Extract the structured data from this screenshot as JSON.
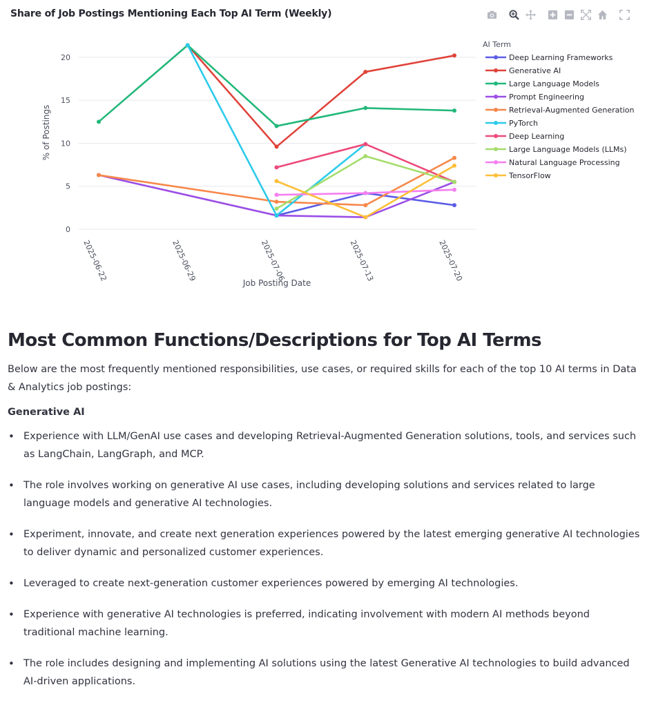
{
  "chart": {
    "title": "Share of Job Postings Mentioning Each Top AI Term (Weekly)",
    "modebar_icons": [
      "camera-icon",
      "zoom-icon",
      "pan-icon",
      "zoom-in-icon",
      "zoom-out-icon",
      "autoscale-icon",
      "reset-axes-icon",
      "fullscreen-icon"
    ]
  },
  "chart_data": {
    "type": "line",
    "title": "Share of Job Postings Mentioning Each Top AI Term (Weekly)",
    "xlabel": "Job Posting Date",
    "ylabel": "% of Postings",
    "categories": [
      "2025-06-22",
      "2025-06-29",
      "2025-07-06",
      "2025-07-13",
      "2025-07-20"
    ],
    "ylim": [
      0,
      22
    ],
    "yticks": [
      0,
      5,
      10,
      15,
      20
    ],
    "grid": true,
    "legend_title": "AI Term",
    "legend_position": "right",
    "series": [
      {
        "name": "Deep Learning Frameworks",
        "color": "#5b5de6",
        "values": [
          null,
          null,
          1.6,
          4.2,
          2.8
        ]
      },
      {
        "name": "Generative AI",
        "color": "#e0433a",
        "values": [
          null,
          21.4,
          9.6,
          18.3,
          20.2
        ]
      },
      {
        "name": "Large Language Models",
        "color": "#22b87a",
        "values": [
          12.5,
          21.4,
          12.0,
          14.1,
          13.8
        ]
      },
      {
        "name": "Prompt Engineering",
        "color": "#9b4ee6",
        "values": [
          6.3,
          null,
          1.6,
          1.4,
          5.5
        ]
      },
      {
        "name": "Retrieval-Augmented Generation",
        "color": "#f7884a",
        "values": [
          6.3,
          null,
          3.2,
          2.8,
          8.3
        ]
      },
      {
        "name": "PyTorch",
        "color": "#2ccbea",
        "values": [
          null,
          21.4,
          1.6,
          9.9,
          null
        ]
      },
      {
        "name": "Deep Learning",
        "color": "#ec4a7a",
        "values": [
          null,
          null,
          7.2,
          9.9,
          5.5
        ]
      },
      {
        "name": "Large Language Models (LLMs)",
        "color": "#a5dd6c",
        "values": [
          null,
          null,
          2.4,
          8.5,
          5.5
        ]
      },
      {
        "name": "Natural Language Processing",
        "color": "#f57ff0",
        "values": [
          null,
          null,
          4.0,
          4.2,
          4.6
        ]
      },
      {
        "name": "TensorFlow",
        "color": "#fdbf3a",
        "values": [
          null,
          null,
          5.6,
          1.4,
          7.4
        ]
      }
    ]
  },
  "section": {
    "heading": "Most Common Functions/Descriptions for Top AI Terms",
    "intro": "Below are the most frequently mentioned responsibilities, use cases, or required skills for each of the top 10 AI terms in Data & Analytics job postings:",
    "term": "Generative AI",
    "bullets": [
      "Experience with LLM/GenAI use cases and developing Retrieval-Augmented Generation solutions, tools, and services such as LangChain, LangGraph, and MCP.",
      "The role involves working on generative AI use cases, including developing solutions and services related to large language models and generative AI technologies.",
      "Experiment, innovate, and create next generation experiences powered by the latest emerging generative AI technologies to deliver dynamic and personalized customer experiences.",
      "Leveraged to create next-generation customer experiences powered by emerging AI technologies.",
      "Experience with generative AI technologies is preferred, indicating involvement with modern AI methods beyond traditional machine learning.",
      "The role includes designing and implementing AI solutions using the latest Generative AI technologies to build advanced AI-driven applications."
    ]
  }
}
